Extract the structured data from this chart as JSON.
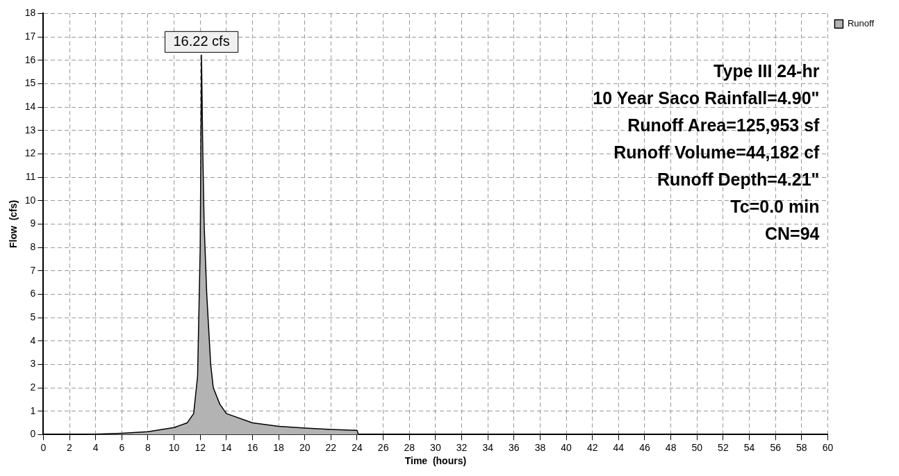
{
  "chart_data": {
    "type": "area",
    "xlabel": "Time  (hours)",
    "ylabel": "Flow  (cfs)",
    "x": [
      0,
      3,
      4,
      6,
      8,
      10,
      11,
      11.5,
      11.8,
      12.0,
      12.1,
      12.2,
      12.3,
      12.5,
      12.8,
      13,
      13.5,
      14,
      16,
      18,
      20,
      22,
      24,
      24.1,
      26,
      60
    ],
    "series": [
      {
        "name": "Runoff",
        "color": "#b3b3b3",
        "values": [
          0,
          0,
          0.02,
          0.06,
          0.12,
          0.3,
          0.5,
          0.9,
          2.5,
          8,
          16.22,
          12,
          9,
          6,
          3,
          2,
          1.3,
          0.9,
          0.5,
          0.35,
          0.28,
          0.22,
          0.18,
          0,
          0,
          0
        ]
      }
    ],
    "xlim": [
      0,
      60
    ],
    "xticks": [
      0,
      2,
      4,
      6,
      8,
      10,
      12,
      14,
      16,
      18,
      20,
      22,
      24,
      26,
      28,
      30,
      32,
      34,
      36,
      38,
      40,
      42,
      44,
      46,
      48,
      50,
      52,
      54,
      56,
      58,
      60
    ],
    "ylim": [
      0,
      18
    ],
    "yticks": [
      0,
      1,
      2,
      3,
      4,
      5,
      6,
      7,
      8,
      9,
      10,
      11,
      12,
      13,
      14,
      15,
      16,
      17,
      18
    ],
    "grid": true,
    "legend": "top right",
    "annotations": [
      {
        "text": "16.22 cfs",
        "x": 12.1,
        "y": 16.22
      },
      "Type III 24-hr",
      "10 Year Saco Rainfall=4.90\"",
      "Runoff Area=125,953 sf",
      "Runoff Volume=44,182 cf",
      "Runoff Depth=4.21\"",
      "Tc=0.0 min",
      "CN=94"
    ]
  }
}
